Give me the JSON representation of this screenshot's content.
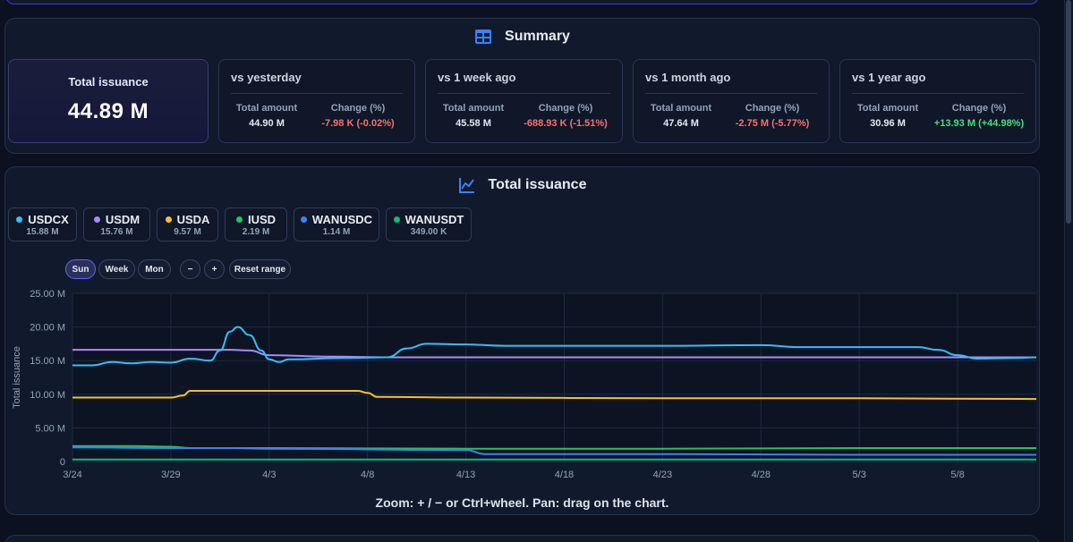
{
  "summary": {
    "title": "Summary",
    "total_label": "Total issuance",
    "total_value": "44.89 M",
    "comparisons": [
      {
        "title": "vs yesterday",
        "amount_label": "Total amount",
        "change_label": "Change (%)",
        "amount": "44.90 M",
        "change": "-7.98 K (-0.02%)",
        "trend": "neg"
      },
      {
        "title": "vs 1 week ago",
        "amount_label": "Total amount",
        "change_label": "Change (%)",
        "amount": "45.58 M",
        "change": "-688.93 K (-1.51%)",
        "trend": "neg"
      },
      {
        "title": "vs 1 month ago",
        "amount_label": "Total amount",
        "change_label": "Change (%)",
        "amount": "47.64 M",
        "change": "-2.75 M (-5.77%)",
        "trend": "neg"
      },
      {
        "title": "vs 1 year ago",
        "amount_label": "Total amount",
        "change_label": "Change (%)",
        "amount": "30.96 M",
        "change": "+13.93 M (+44.98%)",
        "trend": "pos"
      }
    ]
  },
  "chart_panel": {
    "title": "Total issuance",
    "legend": [
      {
        "name": "USDCX",
        "value": "15.88 M",
        "color": "#38bdf8"
      },
      {
        "name": "USDM",
        "value": "15.76 M",
        "color": "#a78bfa"
      },
      {
        "name": "USDA",
        "value": "9.57 M",
        "color": "#fbbf24"
      },
      {
        "name": "IUSD",
        "value": "2.19 M",
        "color": "#22c55e"
      },
      {
        "name": "WANUSDC",
        "value": "1.14 M",
        "color": "#3b82f6"
      },
      {
        "name": "WANUSDT",
        "value": "349.00 K",
        "color": "#10b981"
      }
    ],
    "controls": {
      "sun": "Sun",
      "week": "Week",
      "mon": "Mon",
      "zoom_out": "−",
      "zoom_in": "+",
      "reset": "Reset range"
    },
    "zoom_hint": "Zoom: + / − or Ctrl+wheel. Pan: drag on the chart."
  },
  "chart_data": {
    "type": "line",
    "ylabel": "Total issuance",
    "xlabel": "",
    "ylim": [
      0,
      25
    ],
    "y_ticks": [
      "0",
      "5.00 M",
      "10.00 M",
      "15.00 M",
      "20.00 M",
      "25.00 M"
    ],
    "x_ticks": [
      "3/24",
      "3/29",
      "4/3",
      "4/8",
      "4/13",
      "4/18",
      "4/23",
      "4/28",
      "5/3",
      "5/8"
    ],
    "x_day_start": 0,
    "x_day_end": 49,
    "series": [
      {
        "name": "USDM",
        "color": "#a78bfa",
        "points": [
          [
            0,
            16.6
          ],
          [
            5,
            16.6
          ],
          [
            8,
            16.6
          ],
          [
            9,
            16.5
          ],
          [
            10,
            15.8
          ],
          [
            13,
            15.6
          ],
          [
            16,
            15.5
          ],
          [
            20,
            15.5
          ],
          [
            30,
            15.5
          ],
          [
            40,
            15.5
          ],
          [
            46,
            15.5
          ],
          [
            49,
            15.5
          ]
        ]
      },
      {
        "name": "USDA",
        "color": "#fbbf24",
        "points": [
          [
            0,
            9.5
          ],
          [
            5,
            9.5
          ],
          [
            5.6,
            9.8
          ],
          [
            6,
            10.5
          ],
          [
            9,
            10.5
          ],
          [
            12,
            10.5
          ],
          [
            14.5,
            10.5
          ],
          [
            15,
            10.2
          ],
          [
            15.5,
            9.6
          ],
          [
            20,
            9.5
          ],
          [
            30,
            9.4
          ],
          [
            40,
            9.4
          ],
          [
            49,
            9.3
          ]
        ]
      },
      {
        "name": "USDCX",
        "color": "#38bdf8",
        "points": [
          [
            0,
            14.3
          ],
          [
            1,
            14.3
          ],
          [
            2,
            14.8
          ],
          [
            3,
            14.6
          ],
          [
            4,
            14.8
          ],
          [
            5,
            14.7
          ],
          [
            6,
            15.3
          ],
          [
            7,
            15.0
          ],
          [
            7.5,
            16.5
          ],
          [
            8,
            19.3
          ],
          [
            8.4,
            20.0
          ],
          [
            9,
            18.8
          ],
          [
            9.6,
            16.5
          ],
          [
            10,
            15.2
          ],
          [
            10.5,
            14.8
          ],
          [
            11,
            15.2
          ],
          [
            14,
            15.4
          ],
          [
            16,
            15.5
          ],
          [
            17,
            16.8
          ],
          [
            18,
            17.5
          ],
          [
            20,
            17.4
          ],
          [
            22,
            17.2
          ],
          [
            25,
            17.2
          ],
          [
            30,
            17.2
          ],
          [
            35,
            17.3
          ],
          [
            37,
            17.0
          ],
          [
            40,
            17.0
          ],
          [
            43,
            17.0
          ],
          [
            44,
            16.6
          ],
          [
            45,
            15.8
          ],
          [
            46,
            15.3
          ],
          [
            48,
            15.4
          ],
          [
            49,
            15.5
          ]
        ]
      },
      {
        "name": "IUSD",
        "color": "#22c55e",
        "points": [
          [
            0,
            2.3
          ],
          [
            3,
            2.3
          ],
          [
            5,
            2.2
          ],
          [
            6,
            2.0
          ],
          [
            10,
            2.0
          ],
          [
            20,
            1.9
          ],
          [
            30,
            1.9
          ],
          [
            40,
            2.0
          ],
          [
            49,
            2.0
          ]
        ]
      },
      {
        "name": "WANUSDC",
        "color": "#3b82f6",
        "points": [
          [
            0,
            2.1
          ],
          [
            5,
            2.0
          ],
          [
            8,
            2.0
          ],
          [
            10,
            1.9
          ],
          [
            20,
            1.7
          ],
          [
            21,
            1.1
          ],
          [
            30,
            1.1
          ],
          [
            40,
            1.0
          ],
          [
            49,
            1.0
          ]
        ]
      },
      {
        "name": "WANUSDT",
        "color": "#10b981",
        "points": [
          [
            0,
            0.3
          ],
          [
            10,
            0.3
          ],
          [
            30,
            0.3
          ],
          [
            49,
            0.3
          ]
        ]
      }
    ]
  }
}
